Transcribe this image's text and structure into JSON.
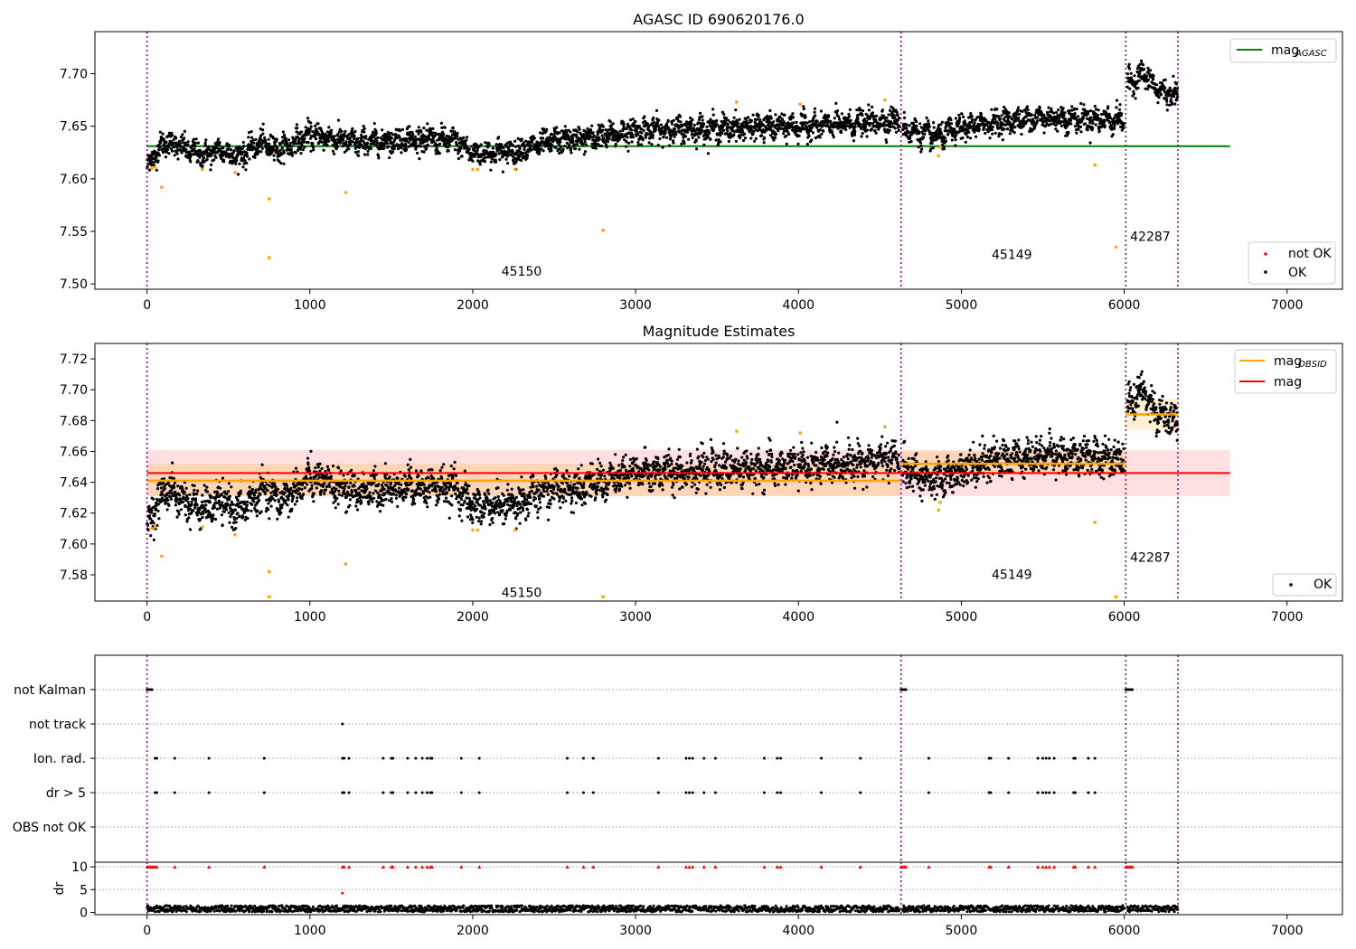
{
  "chart_data": [
    {
      "type": "scatter",
      "title": "AGASC ID 690620176.0",
      "xlim": [
        -320,
        7340
      ],
      "ylim": [
        7.495,
        7.74
      ],
      "xticks": [
        "0",
        "1000",
        "2000",
        "3000",
        "4000",
        "5000",
        "6000",
        "7000"
      ],
      "xtick_values": [
        0,
        1000,
        2000,
        3000,
        4000,
        5000,
        6000,
        7000
      ],
      "yticks": [
        "7.50",
        "7.55",
        "7.60",
        "7.65",
        "7.70"
      ],
      "ytick_values": [
        7.5,
        7.55,
        7.6,
        7.65,
        7.7
      ],
      "obsid_boundaries": [
        0,
        4630,
        6010,
        6330
      ],
      "obsid_labels": [
        {
          "text": "45150",
          "x": 2300,
          "y": 7.508
        },
        {
          "text": "45149",
          "x": 5310,
          "y": 7.524
        },
        {
          "text": "42287",
          "x": 6160,
          "y": 7.541
        }
      ],
      "mag_agasc_line": {
        "y": 7.631,
        "x": [
          0,
          6650
        ],
        "color": "#008000"
      },
      "legend_lines": [
        {
          "label": "mag",
          "subscript": "AGASC",
          "color": "#008000"
        }
      ],
      "legend_points": [
        {
          "label": "not OK",
          "color": "#ff0000"
        },
        {
          "label": "OK",
          "color": "#000000"
        }
      ],
      "ok_trend": [
        {
          "x": 0,
          "y": 7.612
        },
        {
          "x": 60,
          "y": 7.626
        },
        {
          "x": 120,
          "y": 7.636
        },
        {
          "x": 250,
          "y": 7.627
        },
        {
          "x": 350,
          "y": 7.622
        },
        {
          "x": 450,
          "y": 7.628
        },
        {
          "x": 560,
          "y": 7.621
        },
        {
          "x": 700,
          "y": 7.634
        },
        {
          "x": 820,
          "y": 7.628
        },
        {
          "x": 1000,
          "y": 7.642
        },
        {
          "x": 1300,
          "y": 7.634
        },
        {
          "x": 1600,
          "y": 7.638
        },
        {
          "x": 1900,
          "y": 7.636
        },
        {
          "x": 2000,
          "y": 7.624
        },
        {
          "x": 2250,
          "y": 7.626
        },
        {
          "x": 2500,
          "y": 7.636
        },
        {
          "x": 2800,
          "y": 7.64
        },
        {
          "x": 3000,
          "y": 7.646
        },
        {
          "x": 3500,
          "y": 7.648
        },
        {
          "x": 4000,
          "y": 7.65
        },
        {
          "x": 4300,
          "y": 7.652
        },
        {
          "x": 4620,
          "y": 7.656
        },
        {
          "x": 4640,
          "y": 7.648
        },
        {
          "x": 4850,
          "y": 7.64
        },
        {
          "x": 5000,
          "y": 7.648
        },
        {
          "x": 5200,
          "y": 7.654
        },
        {
          "x": 5500,
          "y": 7.658
        },
        {
          "x": 5700,
          "y": 7.657
        },
        {
          "x": 6000,
          "y": 7.656
        },
        {
          "x": 6020,
          "y": 7.69
        },
        {
          "x": 6120,
          "y": 7.7
        },
        {
          "x": 6200,
          "y": 7.685
        },
        {
          "x": 6330,
          "y": 7.678
        }
      ],
      "not_ok_points": [
        {
          "x": 30,
          "y": 7.61
        },
        {
          "x": 50,
          "y": 7.611
        },
        {
          "x": 90,
          "y": 7.592
        },
        {
          "x": 340,
          "y": 7.609
        },
        {
          "x": 540,
          "y": 7.606
        },
        {
          "x": 750,
          "y": 7.581
        },
        {
          "x": 750,
          "y": 7.525
        },
        {
          "x": 1220,
          "y": 7.587
        },
        {
          "x": 2000,
          "y": 7.609
        },
        {
          "x": 2030,
          "y": 7.609
        },
        {
          "x": 2260,
          "y": 7.609
        },
        {
          "x": 2800,
          "y": 7.551
        },
        {
          "x": 3620,
          "y": 7.673
        },
        {
          "x": 4010,
          "y": 7.671
        },
        {
          "x": 4530,
          "y": 7.675
        },
        {
          "x": 4860,
          "y": 7.622
        },
        {
          "x": 4870,
          "y": 7.63
        },
        {
          "x": 5820,
          "y": 7.613
        },
        {
          "x": 5950,
          "y": 7.535
        }
      ]
    },
    {
      "type": "scatter",
      "title": "Magnitude Estimates",
      "xlim": [
        -320,
        7340
      ],
      "ylim": [
        7.563,
        7.73
      ],
      "xticks": [
        "0",
        "1000",
        "2000",
        "3000",
        "4000",
        "5000",
        "6000",
        "7000"
      ],
      "xtick_values": [
        0,
        1000,
        2000,
        3000,
        4000,
        5000,
        6000,
        7000
      ],
      "yticks": [
        "7.58",
        "7.60",
        "7.62",
        "7.64",
        "7.66",
        "7.68",
        "7.70",
        "7.72"
      ],
      "ytick_values": [
        7.58,
        7.6,
        7.62,
        7.64,
        7.66,
        7.68,
        7.7,
        7.72
      ],
      "obsid_boundaries": [
        0,
        4630,
        6010,
        6330
      ],
      "obsid_labels": [
        {
          "text": "45150",
          "x": 2300,
          "y": 7.5655
        },
        {
          "text": "45149",
          "x": 5310,
          "y": 7.5775
        },
        {
          "text": "42287",
          "x": 6160,
          "y": 7.5885
        }
      ],
      "mag_line": {
        "y": 7.646,
        "lo": 7.631,
        "hi": 7.661,
        "x": [
          0,
          6650
        ],
        "color": "#ff0000"
      },
      "mag_obsid_segments": [
        {
          "x": [
            0,
            4630
          ],
          "y": 7.641,
          "lo": 7.631,
          "hi": 7.652
        },
        {
          "x": [
            4630,
            6010
          ],
          "y": 7.652,
          "lo": 7.645,
          "hi": 7.66
        },
        {
          "x": [
            6010,
            6330
          ],
          "y": 7.684,
          "lo": 7.674,
          "hi": 7.694
        }
      ],
      "legend_lines": [
        {
          "label": "mag",
          "subscript": "OBSID",
          "color": "#ffa500"
        },
        {
          "label": "mag",
          "subscript": "",
          "color": "#ff0000"
        }
      ],
      "legend_points": [
        {
          "label": "OK",
          "color": "#000000"
        }
      ],
      "not_ok_points": [
        {
          "x": 30,
          "y": 7.61
        },
        {
          "x": 50,
          "y": 7.611
        },
        {
          "x": 90,
          "y": 7.592
        },
        {
          "x": 340,
          "y": 7.611
        },
        {
          "x": 540,
          "y": 7.606
        },
        {
          "x": 750,
          "y": 7.582
        },
        {
          "x": 1220,
          "y": 7.587
        },
        {
          "x": 2000,
          "y": 7.609
        },
        {
          "x": 2030,
          "y": 7.609
        },
        {
          "x": 2260,
          "y": 7.609
        },
        {
          "x": 3620,
          "y": 7.673
        },
        {
          "x": 4010,
          "y": 7.672
        },
        {
          "x": 4530,
          "y": 7.676
        },
        {
          "x": 4860,
          "y": 7.622
        },
        {
          "x": 4870,
          "y": 7.627
        },
        {
          "x": 5820,
          "y": 7.614
        }
      ],
      "below_axis_markers": [
        750,
        2800,
        5950
      ]
    },
    {
      "type": "scatter",
      "title": "",
      "xlim": [
        -320,
        7340
      ],
      "xticks": [],
      "categories": [
        "not Kalman",
        "not track",
        "Ion. rad.",
        "dr > 5",
        "OBS not OK"
      ],
      "flags": {
        "not Kalman": [
          0,
          10,
          20,
          30,
          4630,
          4640,
          4650,
          4660,
          6010,
          6020,
          6030,
          6040,
          6050
        ],
        "not track": [
          1200
        ],
        "Ion. rad.": [
          50,
          60,
          170,
          380,
          720,
          1200,
          1210,
          1240,
          1450,
          1500,
          1510,
          1600,
          1650,
          1690,
          1720,
          1740,
          1750,
          1930,
          2040,
          2580,
          2680,
          2740,
          3140,
          3310,
          3330,
          3350,
          3420,
          3490,
          3790,
          3870,
          3890,
          4140,
          4380,
          4800,
          5170,
          5180,
          5290,
          5470,
          5500,
          5520,
          5540,
          5570,
          5690,
          5700,
          5780,
          5820
        ],
        "dr > 5": [
          50,
          60,
          170,
          380,
          720,
          1200,
          1210,
          1240,
          1450,
          1500,
          1510,
          1600,
          1650,
          1690,
          1720,
          1740,
          1750,
          1930,
          2040,
          2580,
          2680,
          2740,
          3140,
          3310,
          3330,
          3350,
          3420,
          3490,
          3790,
          3870,
          3890,
          4140,
          4380,
          4800,
          5170,
          5180,
          5290,
          5470,
          5500,
          5520,
          5540,
          5570,
          5690,
          5700,
          5780,
          5820
        ],
        "OBS not OK": []
      },
      "obsid_boundaries": [
        0,
        4630,
        6010,
        6330
      ]
    },
    {
      "type": "scatter",
      "title": "",
      "xlim": [
        -320,
        7340
      ],
      "ylim": [
        -0.5,
        11
      ],
      "ylabel": "dr",
      "xticks": [
        "0",
        "1000",
        "2000",
        "3000",
        "4000",
        "5000",
        "6000",
        "7000"
      ],
      "xtick_values": [
        0,
        1000,
        2000,
        3000,
        4000,
        5000,
        6000,
        7000
      ],
      "yticks": [
        "0",
        "5",
        "10"
      ],
      "ytick_values": [
        0,
        5,
        10
      ],
      "dr_ok_range": [
        0.1,
        1.5
      ],
      "dr_outliers": [
        {
          "x": 1200,
          "y": 4.2
        }
      ],
      "dr_clipped_at_10": [
        0,
        10,
        20,
        30,
        40,
        50,
        60,
        170,
        380,
        720,
        1200,
        1210,
        1240,
        1450,
        1500,
        1510,
        1600,
        1650,
        1690,
        1720,
        1740,
        1750,
        1930,
        2040,
        2580,
        2680,
        2740,
        3140,
        3310,
        3330,
        3350,
        3420,
        3490,
        3790,
        3870,
        3890,
        4140,
        4380,
        4630,
        4640,
        4650,
        4660,
        4800,
        5170,
        5180,
        5290,
        5470,
        5500,
        5520,
        5540,
        5570,
        5690,
        5700,
        5780,
        5820,
        6010,
        6020,
        6030,
        6040,
        6050
      ],
      "obsid_boundaries": [
        0,
        4630,
        6010,
        6330
      ]
    }
  ]
}
